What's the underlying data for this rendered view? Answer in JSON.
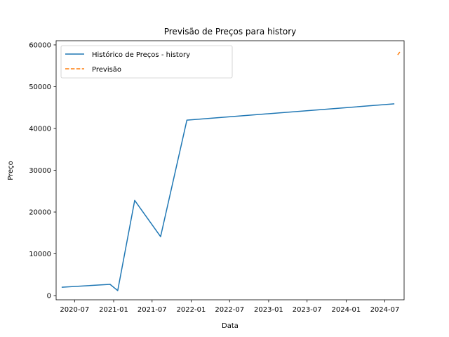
{
  "chart_data": {
    "type": "line",
    "title": "Previsão de Preços para history",
    "xlabel": "Data",
    "ylabel": "Preço",
    "xlim": [
      "2020-04-05",
      "2024-09-30"
    ],
    "ylim": [
      -1000,
      61000
    ],
    "x_ticks": [
      {
        "date": "2020-07-01",
        "label": "2020-07"
      },
      {
        "date": "2021-01-01",
        "label": "2021-01"
      },
      {
        "date": "2021-07-01",
        "label": "2021-07"
      },
      {
        "date": "2022-01-01",
        "label": "2022-01"
      },
      {
        "date": "2022-07-01",
        "label": "2022-07"
      },
      {
        "date": "2023-01-01",
        "label": "2023-01"
      },
      {
        "date": "2023-07-01",
        "label": "2023-07"
      },
      {
        "date": "2024-01-01",
        "label": "2024-01"
      },
      {
        "date": "2024-07-01",
        "label": "2024-07"
      }
    ],
    "y_ticks": [
      {
        "value": 0,
        "label": "0"
      },
      {
        "value": 10000,
        "label": "10000"
      },
      {
        "value": 20000,
        "label": "20000"
      },
      {
        "value": 30000,
        "label": "30000"
      },
      {
        "value": 40000,
        "label": "40000"
      },
      {
        "value": 50000,
        "label": "50000"
      },
      {
        "value": 60000,
        "label": "60000"
      }
    ],
    "grid": false,
    "legend": {
      "placement": "top-left"
    },
    "series": [
      {
        "name": "Histórico de Preços - history",
        "color": "#1f77b4",
        "style": "solid",
        "points": [
          {
            "x": "2020-05-01",
            "y": 2000
          },
          {
            "x": "2020-12-15",
            "y": 2700
          },
          {
            "x": "2021-01-20",
            "y": 1200
          },
          {
            "x": "2021-04-10",
            "y": 22800
          },
          {
            "x": "2021-08-10",
            "y": 14100
          },
          {
            "x": "2021-12-12",
            "y": 42000
          },
          {
            "x": "2024-08-15",
            "y": 45900
          }
        ]
      },
      {
        "name": "Previsão",
        "color": "#ff7f0e",
        "style": "dashed",
        "points": [
          {
            "x": "2024-08-31",
            "y": 57600
          },
          {
            "x": "2024-09-10",
            "y": 58300
          }
        ]
      }
    ]
  }
}
